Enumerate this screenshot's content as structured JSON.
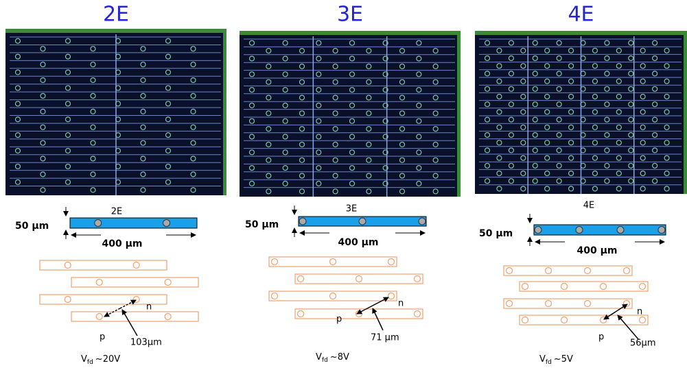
{
  "panels": [
    {
      "title": "2E",
      "pixel_label": "2E",
      "thickness": "50 µm",
      "pitch": "400 µm",
      "p": "p",
      "n": "n",
      "distance": "103µm",
      "vfd": {
        "symbol": "V",
        "subscript": "fd",
        "value": "~20V"
      }
    },
    {
      "title": "3E",
      "pixel_label": "3E",
      "thickness": "50 µm",
      "pitch": "400 µm",
      "p": "p",
      "n": "n",
      "distance": "71 µm",
      "vfd": {
        "symbol": "V",
        "subscript": "fd",
        "value": "~8V"
      }
    },
    {
      "title": "4E",
      "pixel_label": "4E",
      "thickness": "50 µm",
      "pitch": "400 µm",
      "p": "p",
      "n": "n",
      "distance": "56µm",
      "vfd": {
        "symbol": "V",
        "subscript": "fd",
        "value": "~5V"
      }
    }
  ]
}
